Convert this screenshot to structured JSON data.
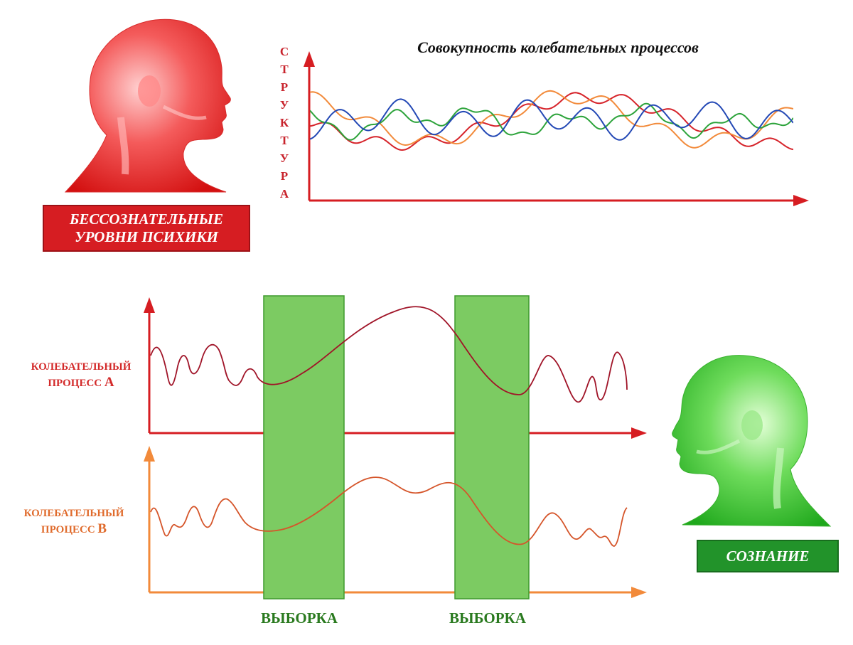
{
  "title": "Совокупность колебательных процессов",
  "y_axis_letters": [
    "С",
    "Т",
    "Р",
    "У",
    "К",
    "Т",
    "У",
    "Р",
    "А"
  ],
  "unconscious_label": {
    "line1": "БЕССОЗНАТЕЛЬНЫЕ",
    "line2": "УРОВНИ ПСИХИКИ"
  },
  "conscious_label": "СОЗНАНИЕ",
  "process_a": {
    "line1": "КОЛЕБАТЕЛЬНЫЙ",
    "line2_prefix": "ПРОЦЕСС ",
    "letter": "А"
  },
  "process_b": {
    "line1": "КОЛЕБАТЕЛЬНЫЙ",
    "line2_prefix": "ПРОЦЕСС ",
    "letter": "В"
  },
  "samples": [
    "ВЫБОРКА",
    "ВЫБОРКА"
  ],
  "colors": {
    "red": "#d61d22",
    "orange": "#f28a3a",
    "green": "#2ca33a",
    "blue": "#2348b5",
    "sample_fill": "#7ccb62",
    "wave_a": "#a01428",
    "wave_b": "#d5552a"
  }
}
